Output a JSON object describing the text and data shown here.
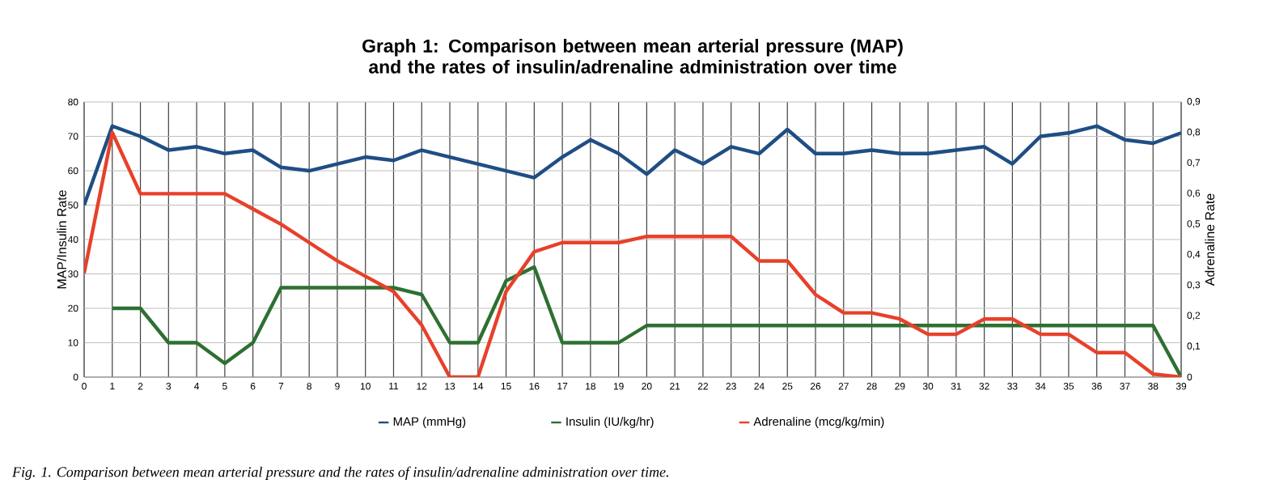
{
  "chart_data": {
    "type": "line",
    "title": "Graph 1: Comparison between mean arterial pressure (MAP) and the rates of insulin/adrenaline administration over time",
    "ylabel": "MAP/Insulin Rate",
    "y2label": "Adrenaline Rate",
    "x": [
      0,
      1,
      2,
      3,
      4,
      5,
      6,
      7,
      8,
      9,
      10,
      11,
      12,
      13,
      14,
      15,
      16,
      17,
      18,
      19,
      20,
      21,
      22,
      23,
      24,
      25,
      26,
      27,
      28,
      29,
      30,
      31,
      32,
      33,
      34,
      35,
      36,
      37,
      38,
      39
    ],
    "xlim": [
      0,
      39
    ],
    "xticks": [
      0,
      1,
      2,
      3,
      4,
      5,
      6,
      7,
      8,
      9,
      10,
      11,
      12,
      13,
      14,
      15,
      16,
      17,
      18,
      19,
      20,
      21,
      22,
      23,
      24,
      25,
      26,
      27,
      28,
      29,
      30,
      31,
      32,
      33,
      34,
      35,
      36,
      37,
      38,
      39
    ],
    "ylim": [
      0,
      80
    ],
    "yticks": [
      0,
      10,
      20,
      30,
      40,
      50,
      60,
      70,
      80
    ],
    "y2lim": [
      0,
      0.9
    ],
    "y2ticks": [
      {
        "value": 0,
        "label": "0"
      },
      {
        "value": 0.1,
        "label": "0,1"
      },
      {
        "value": 0.2,
        "label": "0,2"
      },
      {
        "value": 0.3,
        "label": "0,3"
      },
      {
        "value": 0.4,
        "label": "0,4"
      },
      {
        "value": 0.5,
        "label": "0,5"
      },
      {
        "value": 0.6,
        "label": "0,6"
      },
      {
        "value": 0.7,
        "label": "0,7"
      },
      {
        "value": 0.8,
        "label": "0,8"
      },
      {
        "value": 0.9,
        "label": "0,9"
      }
    ],
    "series": [
      {
        "name": "MAP (mmHg)",
        "color": "#1f4e85",
        "values": [
          50,
          73,
          70,
          66,
          67,
          65,
          66,
          61,
          60,
          62,
          64,
          63,
          66,
          64,
          62,
          60,
          58,
          64,
          69,
          65,
          59,
          66,
          62,
          67,
          65,
          72,
          65,
          65,
          66,
          65,
          65,
          66,
          67,
          62,
          70,
          71,
          73,
          69,
          68,
          71
        ]
      },
      {
        "name": "Insulin (IU/kg/hr)",
        "color": "#2e7031",
        "values": [
          null,
          20,
          20,
          10,
          10,
          4,
          10,
          26,
          26,
          26,
          26,
          26,
          24,
          10,
          10,
          28,
          32,
          10,
          10,
          10,
          15,
          15,
          15,
          15,
          15,
          15,
          15,
          15,
          15,
          15,
          15,
          15,
          15,
          15,
          15,
          15,
          15,
          15,
          15,
          0
        ]
      },
      {
        "name": "Adrenaline (mcg/kg/min)",
        "color": "#e8402a",
        "axis": "y2",
        "values": [
          0.34,
          0.8,
          0.6,
          0.6,
          0.6,
          0.6,
          0.55,
          0.5,
          0.44,
          0.38,
          0.33,
          0.28,
          0.17,
          0,
          0,
          0.28,
          0.41,
          0.44,
          0.44,
          0.44,
          0.46,
          0.46,
          0.46,
          0.46,
          0.38,
          0.38,
          0.27,
          0.21,
          0.21,
          0.19,
          0.14,
          0.14,
          0.19,
          0.19,
          0.14,
          0.14,
          0.08,
          0.08,
          0.01,
          0
        ]
      }
    ],
    "grid": true,
    "legend": "bottom",
    "marker": "none",
    "line_style": "solid",
    "annotations": [
      "Fig. 1. Comparison between mean arterial pressure and the rates of insulin/adrenaline administration over time."
    ]
  }
}
